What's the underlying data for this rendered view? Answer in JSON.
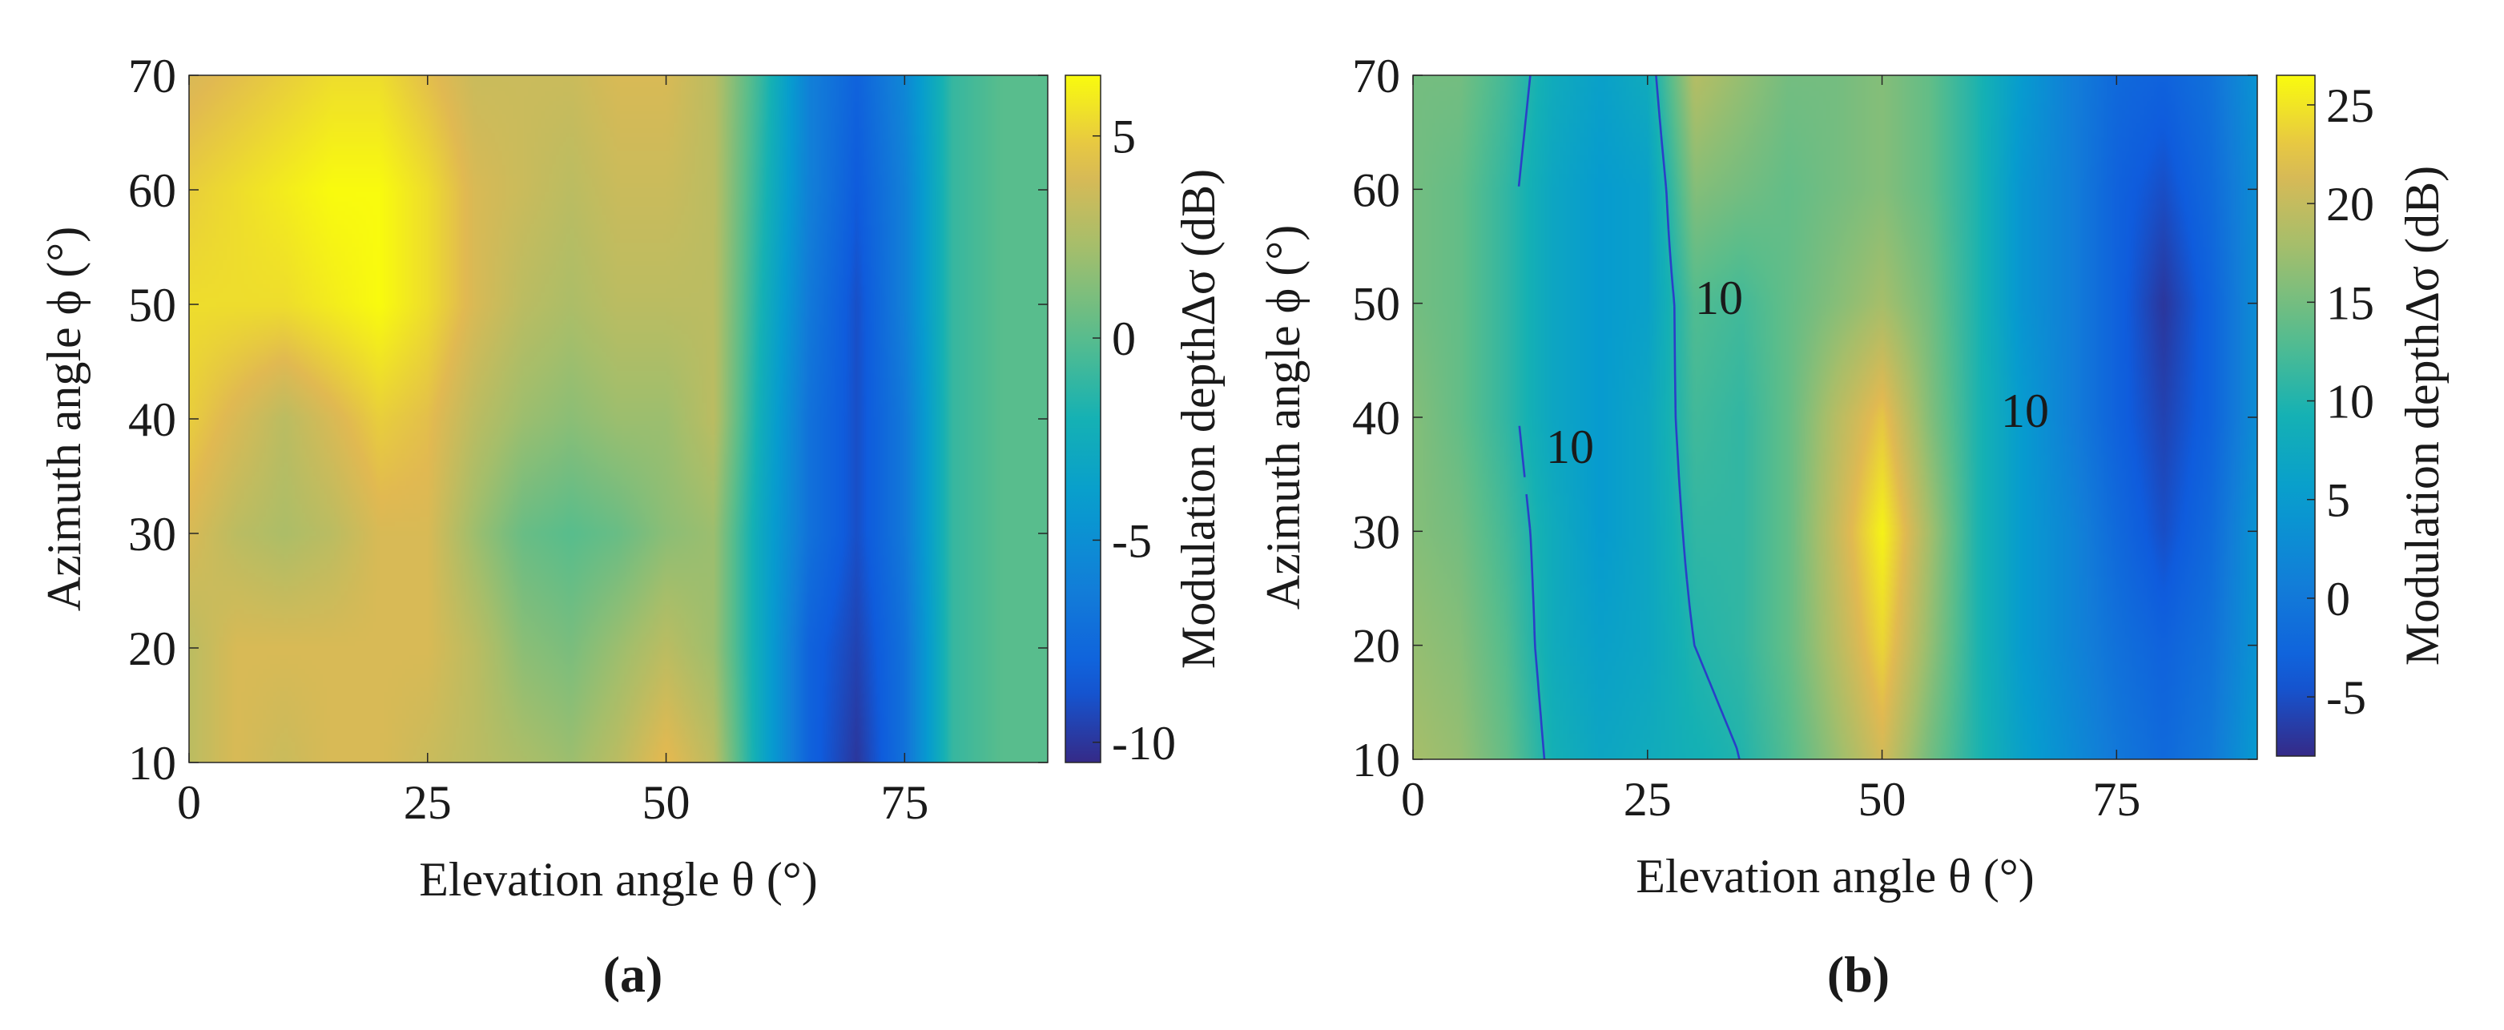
{
  "chart_data": [
    {
      "type": "heatmap",
      "panel_label": "(a)",
      "xlabel": "Elevation angle θ (°)",
      "ylabel": "Azimuth angle ϕ (°)",
      "colorbar_label": "Modulation depthΔσ (dB)",
      "xlim": [
        0,
        90
      ],
      "ylim": [
        10,
        70
      ],
      "xticks": [
        0,
        25,
        50,
        75
      ],
      "yticks": [
        10,
        20,
        30,
        40,
        50,
        60,
        70
      ],
      "clim": [
        -10.5,
        6.5
      ],
      "colorbar_ticks": [
        5,
        0,
        -5,
        -10
      ],
      "colormap": "parula",
      "grid": false,
      "x_samples": [
        0,
        5,
        10,
        15,
        20,
        25,
        30,
        35,
        40,
        45,
        50,
        55,
        60,
        65,
        70,
        75,
        80,
        85,
        90
      ],
      "y_samples": [
        10,
        20,
        30,
        40,
        50,
        60,
        70
      ],
      "z": [
        [
          3,
          4,
          3.5,
          4,
          4,
          3.5,
          3,
          2.5,
          2,
          3,
          4.5,
          3,
          -3,
          -8,
          -10,
          -7,
          -1,
          0,
          0
        ],
        [
          3,
          4,
          4,
          4,
          4,
          4,
          3,
          1.5,
          1,
          2,
          3,
          2,
          -3,
          -8,
          -9.5,
          -7,
          -1,
          0,
          0
        ],
        [
          4,
          3,
          2.5,
          3,
          4,
          4,
          2,
          0.5,
          0,
          0.5,
          1.5,
          2,
          -3,
          -7,
          -9,
          -6.5,
          -1,
          0,
          0
        ],
        [
          5,
          4,
          3,
          4,
          5,
          4.5,
          3,
          2,
          1.5,
          2,
          2,
          3,
          -2.5,
          -7,
          -9,
          -6.5,
          -1,
          0,
          0
        ],
        [
          5.5,
          5.5,
          5.5,
          6,
          6.5,
          5.5,
          4,
          3,
          2.5,
          3,
          3,
          3,
          -2,
          -6.5,
          -9,
          -6,
          -1,
          0,
          0
        ],
        [
          5,
          5.5,
          6,
          6.5,
          6.5,
          5.5,
          4,
          3.5,
          3,
          3.5,
          3.5,
          3,
          -1.5,
          -6,
          -8.5,
          -6,
          -1,
          0,
          0
        ],
        [
          4,
          4.5,
          5,
          5.5,
          5.5,
          4.5,
          3.5,
          3.5,
          3.5,
          4,
          4,
          3,
          -1,
          -6,
          -8,
          -5.5,
          -1,
          0,
          0
        ]
      ]
    },
    {
      "type": "heatmap",
      "panel_label": "(b)",
      "xlabel": "Elevation angle θ (°)",
      "ylabel": "Azimuth angle ϕ (°)",
      "colorbar_label": "Modulation depthΔσ (dB)",
      "xlim": [
        0,
        90
      ],
      "ylim": [
        10,
        70
      ],
      "xticks": [
        0,
        25,
        50,
        75
      ],
      "yticks": [
        10,
        20,
        30,
        40,
        50,
        60,
        70
      ],
      "clim": [
        -8,
        26.5
      ],
      "colorbar_ticks": [
        25,
        20,
        15,
        10,
        5,
        0,
        -5
      ],
      "colormap": "parula",
      "grid": false,
      "x_samples": [
        0,
        5,
        10,
        15,
        20,
        25,
        30,
        35,
        40,
        45,
        50,
        55,
        60,
        65,
        70,
        75,
        80,
        85,
        90
      ],
      "y_samples": [
        10,
        20,
        30,
        40,
        50,
        60,
        70
      ],
      "z": [
        [
          18,
          17,
          14,
          9,
          7,
          8,
          9,
          10,
          13,
          17,
          21,
          15,
          10,
          6,
          3,
          0,
          -2,
          0,
          5
        ],
        [
          17,
          16,
          13,
          8,
          6,
          7,
          10,
          11,
          14,
          19,
          24,
          17,
          10,
          5,
          2,
          -1,
          -3,
          -1,
          4
        ],
        [
          16,
          15,
          12,
          8,
          5,
          7,
          11,
          11,
          14,
          20,
          26,
          18,
          10,
          5,
          2,
          -2,
          -5,
          -2,
          4
        ],
        [
          16,
          14,
          11,
          7,
          5,
          7,
          12,
          11,
          14,
          19,
          23,
          16,
          10,
          5,
          1,
          -3,
          -6,
          -3,
          3
        ],
        [
          15,
          14,
          11,
          7,
          5,
          6,
          13,
          12,
          14,
          16,
          18,
          15,
          10,
          4,
          1,
          -3,
          -7,
          -3,
          3
        ],
        [
          15,
          14,
          11,
          7,
          5,
          6,
          16,
          15,
          14,
          15,
          16,
          14,
          10,
          4,
          1,
          -3,
          -5,
          -2,
          3
        ],
        [
          15,
          15,
          12,
          8,
          6,
          8,
          19,
          17,
          15,
          15,
          16,
          14,
          10,
          5,
          1,
          -2,
          -3,
          -1,
          4
        ]
      ],
      "contour_levels": [
        10
      ],
      "contour_labels": [
        "10",
        "10",
        "10"
      ]
    }
  ]
}
